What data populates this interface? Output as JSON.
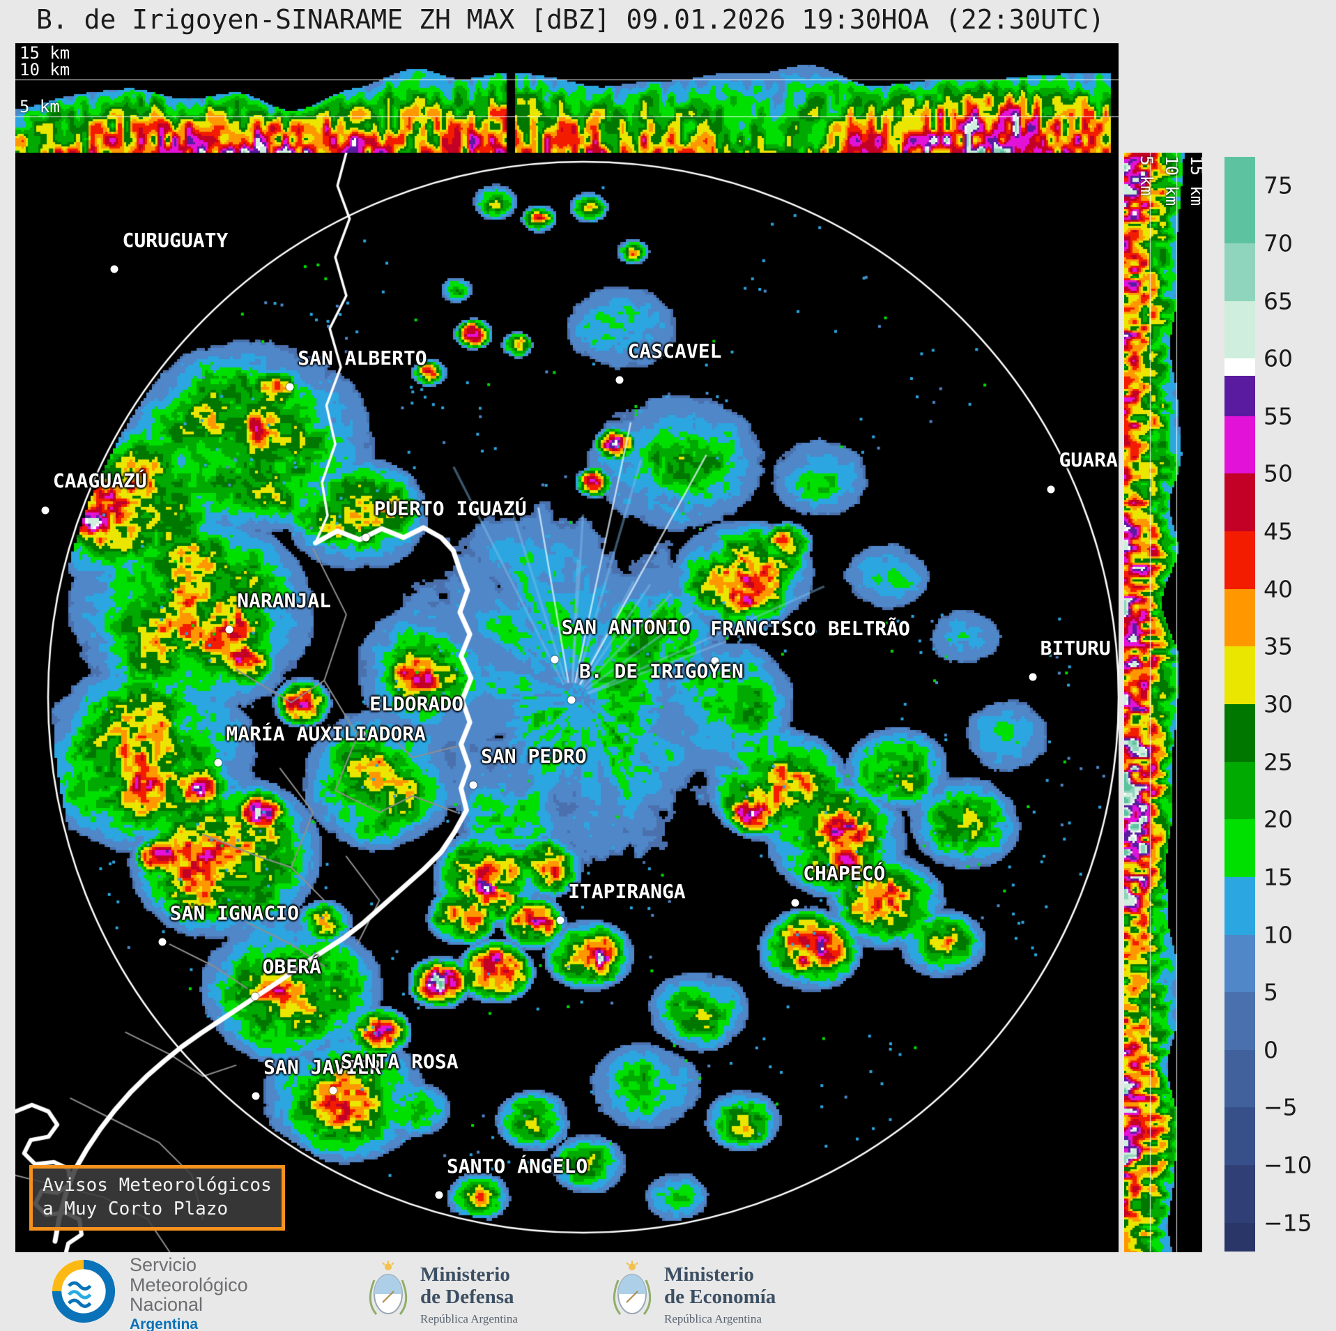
{
  "title": "B. de Irigoyen-SINARAME ZH MAX [dBZ] 09.01.2026 19:30HOA (22:30UTC)",
  "product": {
    "radar": "B. de Irigoyen",
    "network": "SINARAME",
    "field": "ZH MAX",
    "units": "dBZ",
    "date": "09.01.2026",
    "time_local": "19:30HOA",
    "time_utc": "22:30UTC"
  },
  "profiles": {
    "top": {
      "labels": [
        "15 km",
        "10 km",
        "5 km"
      ]
    },
    "right": {
      "labels": [
        "5 km",
        "10 km",
        "15 km"
      ]
    }
  },
  "colorbar": {
    "min": -17.5,
    "max": 77.5,
    "ticks": [
      75,
      70,
      65,
      60,
      55,
      50,
      45,
      40,
      35,
      30,
      25,
      20,
      15,
      10,
      5,
      0,
      -5,
      -10,
      -15
    ],
    "segments": [
      {
        "from": -17.5,
        "to": -15,
        "color": "#2a3668"
      },
      {
        "from": -15,
        "to": -10,
        "color": "#303f75"
      },
      {
        "from": -10,
        "to": -5,
        "color": "#37508a"
      },
      {
        "from": -5,
        "to": 0,
        "color": "#40619c"
      },
      {
        "from": 0,
        "to": 5,
        "color": "#4a71ad"
      },
      {
        "from": 5,
        "to": 10,
        "color": "#4f87c9"
      },
      {
        "from": 10,
        "to": 15,
        "color": "#2ba6e0"
      },
      {
        "from": 15,
        "to": 20,
        "color": "#00e000"
      },
      {
        "from": 20,
        "to": 25,
        "color": "#00aa00"
      },
      {
        "from": 25,
        "to": 30,
        "color": "#007800"
      },
      {
        "from": 30,
        "to": 35,
        "color": "#eae600"
      },
      {
        "from": 35,
        "to": 40,
        "color": "#ff9800"
      },
      {
        "from": 40,
        "to": 45,
        "color": "#f31c00"
      },
      {
        "from": 45,
        "to": 50,
        "color": "#c30026"
      },
      {
        "from": 50,
        "to": 55,
        "color": "#e312d8"
      },
      {
        "from": 55,
        "to": 58.5,
        "color": "#5a1ba0"
      },
      {
        "from": 58.5,
        "to": 60,
        "color": "#ffffff"
      },
      {
        "from": 60,
        "to": 65,
        "color": "#cfeedd"
      },
      {
        "from": 65,
        "to": 70,
        "color": "#8fd5bd"
      },
      {
        "from": 70,
        "to": 77.5,
        "color": "#5dc2a0"
      }
    ]
  },
  "map": {
    "radar_site": "B. DE IRIGOYEN",
    "cities": [
      {
        "name": "CURUGUATY",
        "dot": [
          9.0,
          10.6
        ],
        "label": [
          9.7,
          9.0
        ]
      },
      {
        "name": "SAN ALBERTO",
        "dot": [
          24.9,
          21.3
        ],
        "label": [
          25.6,
          19.7
        ]
      },
      {
        "name": "CASCAVEL",
        "dot": [
          54.8,
          20.7
        ],
        "label": [
          55.5,
          19.1
        ]
      },
      {
        "name": "CAAGUAZÚ",
        "dot": [
          2.7,
          32.5
        ],
        "label": [
          3.4,
          30.9
        ]
      },
      {
        "name": "PUERTO IGUAZÚ",
        "dot": [
          31.8,
          35.0
        ],
        "label": [
          32.5,
          33.4
        ]
      },
      {
        "name": "GUARA",
        "dot": [
          93.9,
          30.6
        ],
        "label": [
          94.6,
          29.0
        ]
      },
      {
        "name": "NARANJAL",
        "dot": [
          19.4,
          43.4
        ],
        "label": [
          20.1,
          41.8
        ]
      },
      {
        "name": "SAN ANTONIO",
        "dot": [
          48.9,
          46.1
        ],
        "label": [
          49.5,
          44.2
        ]
      },
      {
        "name": "FRANCISCO BELTRÃO",
        "dot": [
          63.4,
          46.2
        ],
        "label": [
          63.0,
          44.3
        ]
      },
      {
        "name": "B. DE IRIGOYEN",
        "dot": [
          50.4,
          49.8
        ],
        "label": [
          51.1,
          48.2
        ]
      },
      {
        "name": "BITURU",
        "dot": [
          92.2,
          47.7
        ],
        "label": [
          92.9,
          46.1
        ]
      },
      {
        "name": "ELDORADO",
        "dot": [
          31.4,
          52.8
        ],
        "label": [
          32.1,
          51.2
        ]
      },
      {
        "name": "MARÍA AUXILIADORA",
        "dot": [
          18.4,
          55.5
        ],
        "label": [
          19.1,
          53.9
        ]
      },
      {
        "name": "SAN PEDRO",
        "dot": [
          41.5,
          57.5
        ],
        "label": [
          42.2,
          55.9
        ]
      },
      {
        "name": "ITAPIRANGA",
        "dot": [
          49.4,
          69.8
        ],
        "label": [
          50.1,
          68.2
        ]
      },
      {
        "name": "CHAPECÓ",
        "dot": [
          70.7,
          68.2
        ],
        "label": [
          71.4,
          66.6
        ]
      },
      {
        "name": "SAN IGNACIO",
        "dot": [
          13.3,
          71.8
        ],
        "label": [
          14.0,
          70.2
        ]
      },
      {
        "name": "OBERÁ",
        "dot": [
          21.7,
          76.7
        ],
        "label": [
          22.4,
          75.1
        ]
      },
      {
        "name": "SAN JAVIER",
        "dot": [
          21.8,
          85.8
        ],
        "label": [
          22.5,
          84.2
        ]
      },
      {
        "name": "SANTA ROSA",
        "dot": [
          28.8,
          85.3
        ],
        "label": [
          29.5,
          83.7
        ]
      },
      {
        "name": "SANTO ÁNGELO",
        "dot": [
          38.4,
          94.8
        ],
        "label": [
          39.1,
          93.2
        ]
      }
    ]
  },
  "warning": {
    "lines": [
      "Avisos Meteorológicos",
      "a Muy Corto Plazo"
    ],
    "border_color": "#f5921e"
  },
  "footer": {
    "smn": {
      "line1": "Servicio",
      "line2": "Meteorológico",
      "line3": "Nacional",
      "country": "Argentina"
    },
    "defensa": {
      "line1": "Ministerio",
      "line2": "de Defensa",
      "sub": "República Argentina"
    },
    "economia": {
      "line1": "Ministerio",
      "line2": "de Economía",
      "sub": "República Argentina"
    }
  }
}
